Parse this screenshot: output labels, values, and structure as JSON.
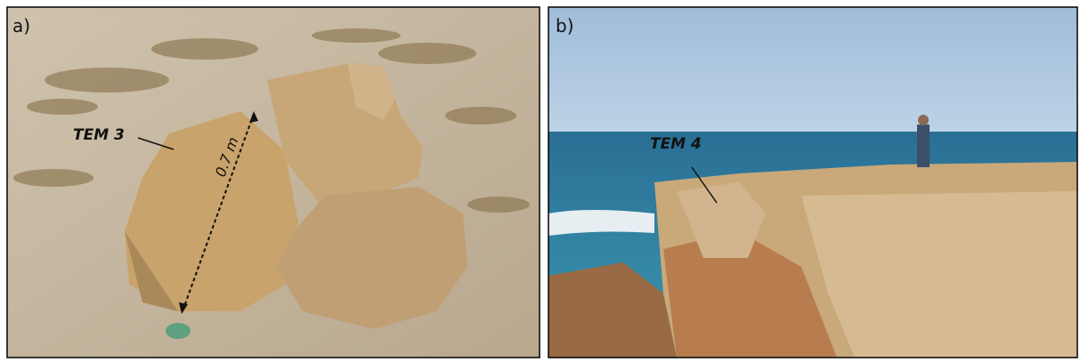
{
  "panels": [
    {
      "label": "a)",
      "annotations": [
        {
          "text": "TEM 3"
        },
        {
          "text": "0.7 m"
        }
      ]
    },
    {
      "label": "b)",
      "annotations": [
        {
          "text": "TEM 4"
        }
      ]
    }
  ]
}
